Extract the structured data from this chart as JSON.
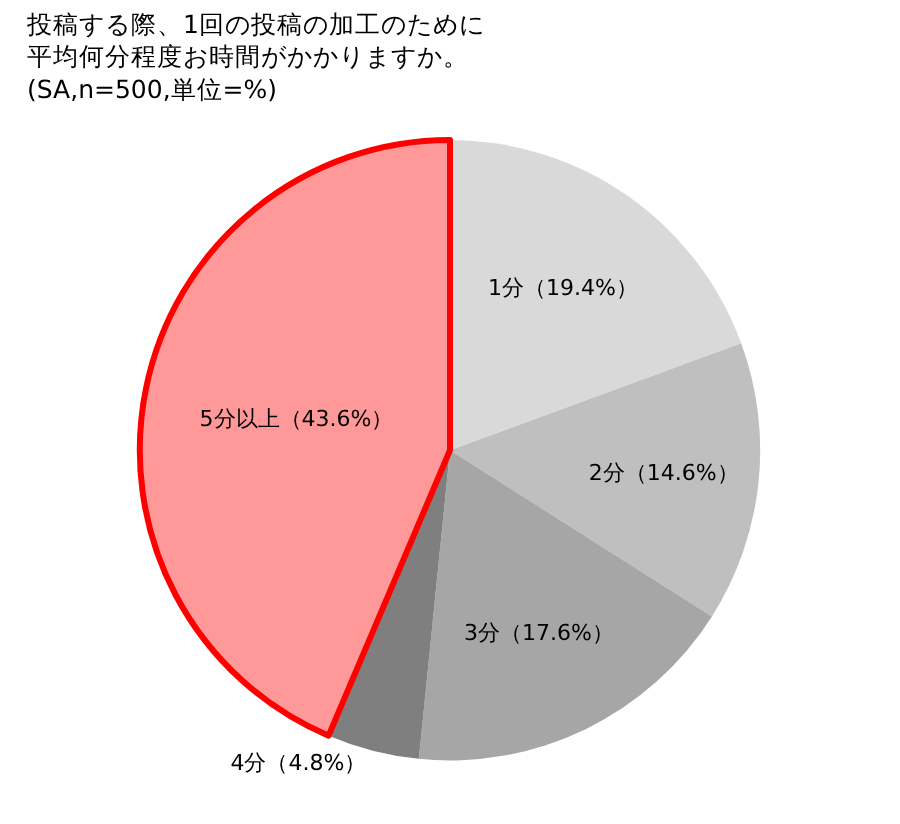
{
  "chart_data": {
    "type": "pie",
    "title": "投稿する際、1回の投稿の加工のために平均何分程度お時間がかかりますか。　(SA,n=500,単位=%)",
    "categories": [
      "1分",
      "2分",
      "3分",
      "4分",
      "5分以上"
    ],
    "values": [
      19.4,
      14.6,
      17.6,
      4.8,
      43.6
    ],
    "value_labels": [
      "（19.4%）",
      "（14.6%）",
      "（17.6%）",
      "（4.8%）",
      "（43.6%）"
    ],
    "colors": [
      "#d9d9d9",
      "#bfbfbf",
      "#a6a6a6",
      "#7f7f7f",
      "#ff9999"
    ],
    "legend": false
  }
}
